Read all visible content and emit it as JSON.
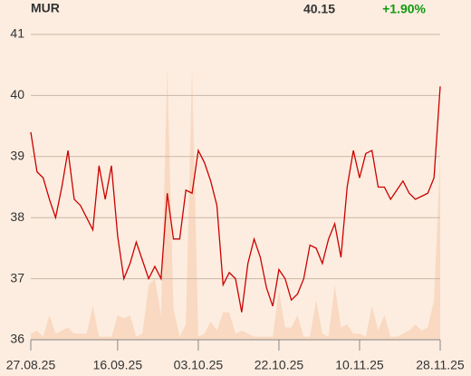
{
  "chart_data": {
    "type": "line",
    "title": "MUR",
    "last_price": "40.15",
    "change": "+1.90%",
    "change_color": "#119911",
    "categories": [
      "27.08.25",
      null,
      null,
      null,
      null,
      null,
      null,
      null,
      null,
      null,
      null,
      null,
      null,
      null,
      "16.09.25",
      null,
      null,
      null,
      null,
      null,
      null,
      null,
      null,
      null,
      null,
      null,
      null,
      "03.10.25",
      null,
      null,
      null,
      null,
      null,
      null,
      null,
      null,
      null,
      null,
      null,
      null,
      "22.10.25",
      null,
      null,
      null,
      null,
      null,
      null,
      null,
      null,
      null,
      null,
      null,
      null,
      "10.11.25",
      null,
      null,
      null,
      null,
      null,
      null,
      null,
      null,
      null,
      null,
      null,
      null,
      "28.11.25"
    ],
    "series": [
      {
        "color": "#cc0000",
        "values": [
          39.4,
          38.75,
          38.65,
          38.3,
          38.0,
          38.5,
          39.1,
          38.3,
          38.2,
          38.0,
          37.8,
          38.85,
          38.3,
          38.85,
          37.7,
          37.0,
          37.25,
          37.6,
          37.3,
          37.0,
          37.2,
          37.0,
          38.4,
          37.65,
          37.65,
          38.45,
          38.4,
          39.1,
          38.9,
          38.6,
          38.2,
          36.9,
          37.1,
          37.0,
          36.45,
          37.25,
          37.65,
          37.35,
          36.85,
          36.55,
          37.15,
          37.0,
          36.65,
          36.75,
          37.0,
          37.55,
          37.5,
          37.25,
          37.65,
          37.9,
          37.35,
          38.5,
          39.1,
          38.65,
          39.05,
          39.1,
          38.5,
          38.5,
          38.3,
          38.45,
          38.6,
          38.4,
          38.3,
          38.35,
          38.4,
          38.65,
          40.15
        ]
      },
      {
        "color": "#f9d9c1",
        "axis": "y2",
        "values": [
          2,
          3,
          1,
          8,
          2,
          3,
          4,
          2,
          2,
          2,
          11,
          1,
          1,
          1,
          8,
          7,
          8,
          1,
          2,
          18,
          20,
          8,
          89,
          10,
          1,
          5,
          89,
          1,
          2,
          6,
          3,
          9,
          9,
          2,
          3,
          2,
          1,
          1,
          1,
          1,
          16,
          4,
          4,
          8,
          1,
          1,
          13,
          2,
          1,
          18,
          4,
          5,
          2,
          2,
          1,
          11,
          3,
          8,
          1,
          1,
          2,
          3,
          5,
          3,
          4,
          13,
          60
        ]
      }
    ],
    "ylim": [
      36,
      41
    ],
    "yticks": [
      36,
      37,
      38,
      39,
      40,
      41
    ],
    "y2lim": [
      0,
      100
    ],
    "grid": true
  }
}
